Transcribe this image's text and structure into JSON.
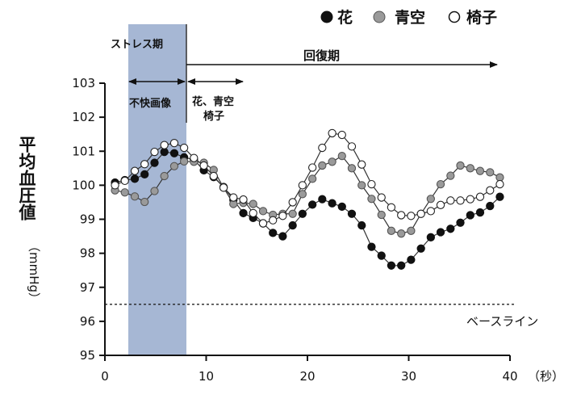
{
  "chart_data": {
    "type": "line",
    "xlabel": "（秒）",
    "ylabel": "平均血圧値",
    "ylabel_unit": "（mmHg）",
    "xlim": [
      0,
      40
    ],
    "ylim": [
      95,
      103
    ],
    "xticks": [
      "0",
      "10",
      "20",
      "30",
      "40"
    ],
    "xtick_values": [
      0,
      10,
      20,
      30,
      40
    ],
    "yticks": [
      "95",
      "96",
      "97",
      "98",
      "99",
      "100",
      "101",
      "102",
      "103"
    ],
    "ytick_values": [
      95,
      96,
      97,
      98,
      99,
      100,
      101,
      102,
      103
    ],
    "legend_placement": "top-right",
    "x": [
      1,
      1.97,
      2.95,
      3.92,
      4.9,
      5.87,
      6.85,
      7.82,
      8.79,
      9.77,
      10.74,
      11.72,
      12.69,
      13.67,
      14.64,
      15.62,
      16.59,
      17.56,
      18.54,
      19.51,
      20.49,
      21.46,
      22.44,
      23.41,
      24.38,
      25.36,
      26.33,
      27.31,
      28.28,
      29.26,
      30.23,
      31.21,
      32.18,
      33.15,
      34.13,
      35.1,
      36.08,
      37.05,
      38.03,
      39
    ],
    "series": [
      {
        "name": "花",
        "marker": "filled-black",
        "color": "#111111",
        "values": [
          100.08,
          100.15,
          100.19,
          100.32,
          100.66,
          100.98,
          100.94,
          100.82,
          100.75,
          100.44,
          100.24,
          99.95,
          99.57,
          99.18,
          99.04,
          98.88,
          98.6,
          98.5,
          98.82,
          99.16,
          99.43,
          99.59,
          99.47,
          99.37,
          99.16,
          98.82,
          98.19,
          97.93,
          97.64,
          97.64,
          97.81,
          98.14,
          98.47,
          98.62,
          98.72,
          98.9,
          99.12,
          99.2,
          99.39,
          99.66
        ]
      },
      {
        "name": "青空",
        "marker": "filled-gray",
        "color": "#9a9a9a",
        "values": [
          99.85,
          99.79,
          99.67,
          99.51,
          99.83,
          100.27,
          100.56,
          100.7,
          100.69,
          100.66,
          100.45,
          99.93,
          99.45,
          99.48,
          99.45,
          99.24,
          99.13,
          99.16,
          99.16,
          99.74,
          100.19,
          100.58,
          100.69,
          100.86,
          100.5,
          100.0,
          99.6,
          99.13,
          98.66,
          98.58,
          98.66,
          99.16,
          99.6,
          100.03,
          100.28,
          100.58,
          100.5,
          100.42,
          100.38,
          100.23
        ]
      },
      {
        "name": "椅子",
        "marker": "open-white",
        "color": "#ffffff",
        "values": [
          100.0,
          100.13,
          100.42,
          100.62,
          100.98,
          101.18,
          101.24,
          101.1,
          100.8,
          100.58,
          100.27,
          99.93,
          99.64,
          99.58,
          99.18,
          98.88,
          98.97,
          99.1,
          99.5,
          100.0,
          100.52,
          101.1,
          101.53,
          101.48,
          101.14,
          100.61,
          100.03,
          99.64,
          99.35,
          99.12,
          99.1,
          99.16,
          99.24,
          99.42,
          99.55,
          99.55,
          99.59,
          99.66,
          99.85,
          100.03
        ]
      }
    ],
    "stress_period": {
      "label": "ストレス期",
      "x_range": [
        2,
        8
      ],
      "color": "#a6b7d4"
    },
    "recovery_period": {
      "label": "回復期",
      "x_range": [
        8,
        39
      ]
    },
    "unpleasant_image": {
      "label": "不快画像",
      "x_range": [
        2,
        8
      ]
    },
    "pleasant_image": {
      "label_line1": "花、青空",
      "label_line2": "椅子",
      "x_range": [
        8,
        13.5
      ]
    },
    "baseline": {
      "label": "ベースライン",
      "value": 96.5
    }
  }
}
